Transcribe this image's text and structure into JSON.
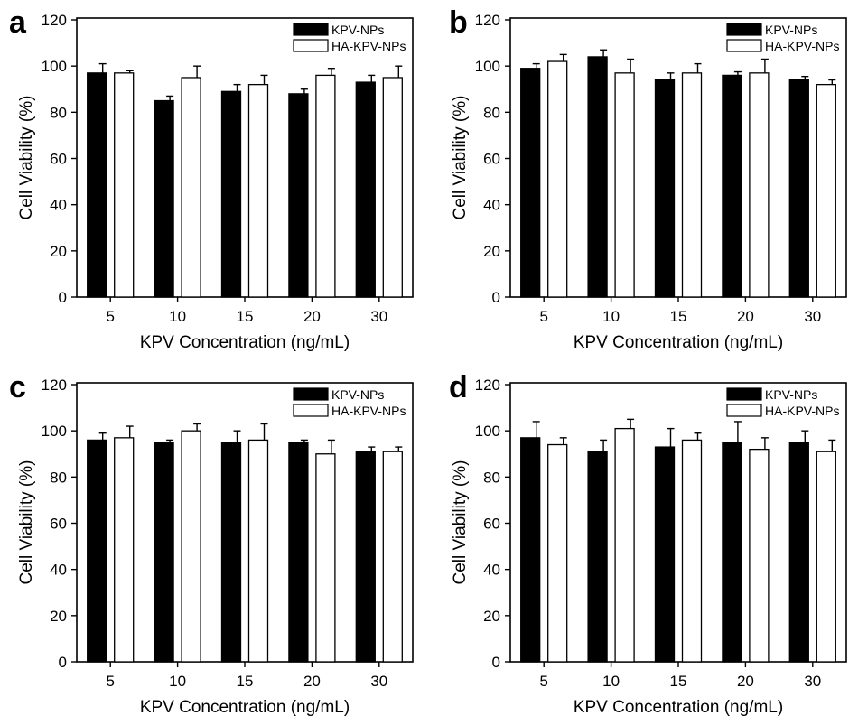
{
  "figure": {
    "colors": {
      "KPV-NPs": "#000000",
      "HA-KPV-NPs": "#ffffff",
      "axis": "#000000"
    }
  },
  "chart_data": [
    {
      "panel": "a",
      "type": "bar",
      "categories": [
        "5",
        "10",
        "15",
        "20",
        "30"
      ],
      "xlabel": "KPV Concentration (ng/mL)",
      "ylabel": "Cell Viability (%)",
      "ylim": [
        0,
        120
      ],
      "yticks": [
        0,
        20,
        40,
        60,
        80,
        100,
        120
      ],
      "grid": false,
      "legend": "top-right",
      "series": [
        {
          "name": "KPV-NPs",
          "values": [
            97,
            85,
            89,
            88,
            93
          ],
          "errors": [
            4,
            2,
            3,
            2,
            3
          ]
        },
        {
          "name": "HA-KPV-NPs",
          "values": [
            97,
            95,
            92,
            96,
            95
          ],
          "errors": [
            1,
            5,
            4,
            3,
            5
          ]
        }
      ]
    },
    {
      "panel": "b",
      "type": "bar",
      "categories": [
        "5",
        "10",
        "15",
        "20",
        "30"
      ],
      "xlabel": "KPV Concentration (ng/mL)",
      "ylabel": "Cell Viability (%)",
      "ylim": [
        0,
        120
      ],
      "yticks": [
        0,
        20,
        40,
        60,
        80,
        100,
        120
      ],
      "grid": false,
      "legend": "top-right",
      "series": [
        {
          "name": "KPV-NPs",
          "values": [
            99,
            104,
            94,
            96,
            94
          ],
          "errors": [
            2,
            3,
            3,
            1.5,
            1.5
          ]
        },
        {
          "name": "HA-KPV-NPs",
          "values": [
            102,
            97,
            97,
            97,
            92
          ],
          "errors": [
            3,
            6,
            4,
            6,
            2
          ]
        }
      ]
    },
    {
      "panel": "c",
      "type": "bar",
      "categories": [
        "5",
        "10",
        "15",
        "20",
        "30"
      ],
      "xlabel": "KPV Concentration (ng/mL)",
      "ylabel": "Cell Viability (%)",
      "ylim": [
        0,
        120
      ],
      "yticks": [
        0,
        20,
        40,
        60,
        80,
        100,
        120
      ],
      "grid": false,
      "legend": "top-right",
      "series": [
        {
          "name": "KPV-NPs",
          "values": [
            96,
            95,
            95,
            95,
            91
          ],
          "errors": [
            3,
            1,
            5,
            1,
            2
          ]
        },
        {
          "name": "HA-KPV-NPs",
          "values": [
            97,
            100,
            96,
            90,
            91
          ],
          "errors": [
            5,
            3,
            7,
            6,
            2
          ]
        }
      ]
    },
    {
      "panel": "d",
      "type": "bar",
      "categories": [
        "5",
        "10",
        "15",
        "20",
        "30"
      ],
      "xlabel": "KPV Concentration (ng/mL)",
      "ylabel": "Cell Viability (%)",
      "ylim": [
        0,
        120
      ],
      "yticks": [
        0,
        20,
        40,
        60,
        80,
        100,
        120
      ],
      "grid": false,
      "legend": "top-right",
      "series": [
        {
          "name": "KPV-NPs",
          "values": [
            97,
            91,
            93,
            95,
            95
          ],
          "errors": [
            7,
            5,
            8,
            9,
            5
          ]
        },
        {
          "name": "HA-KPV-NPs",
          "values": [
            94,
            101,
            96,
            92,
            91
          ],
          "errors": [
            3,
            4,
            3,
            5,
            5
          ]
        }
      ]
    }
  ]
}
